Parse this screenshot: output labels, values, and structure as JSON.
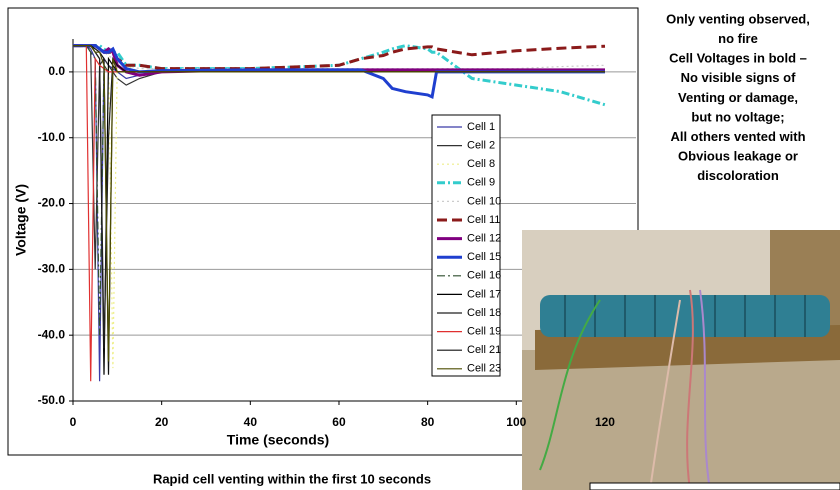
{
  "chart_data": {
    "type": "line",
    "x_label": "Time (seconds)",
    "y_label": "Voltage (V)",
    "caption": "Rapid cell venting within the first 10 seconds",
    "annotations": [
      "Only venting observed,",
      "no fire",
      "Cell Voltages in bold –",
      "No visible signs of",
      "Venting or damage,",
      "but no voltage;",
      "All others vented with",
      "Obvious leakage or",
      "discoloration"
    ],
    "xlim": [
      0,
      127
    ],
    "ylim": [
      -50,
      5
    ],
    "xticks": [
      0,
      20,
      40,
      60,
      80,
      100,
      120
    ],
    "yticks": [
      {
        "value": 0,
        "label": "0.0"
      },
      {
        "value": -10,
        "label": "-10.0"
      },
      {
        "value": -20,
        "label": "-20.0"
      },
      {
        "value": -30,
        "label": "-30.0"
      },
      {
        "value": -40,
        "label": "-40.0"
      },
      {
        "value": -50,
        "label": "-50.0"
      }
    ],
    "grid": true,
    "x": [
      0,
      3,
      4,
      5,
      6,
      7,
      8,
      9,
      10,
      12,
      15,
      20,
      40,
      60,
      65,
      70,
      72,
      75,
      80,
      81,
      82,
      90,
      100,
      110,
      120
    ],
    "series": [
      {
        "name": "Cell 1",
        "color": "#3b3ba8",
        "line_style": "solid",
        "bold": false,
        "values": [
          4,
          4,
          3.5,
          2,
          -47,
          2,
          1,
          0.5,
          0,
          -1,
          -0.5,
          0,
          0.3,
          0.3,
          0.3,
          0.3,
          0.3,
          0.3,
          0.3,
          0.3,
          0.3,
          0.3,
          0.3,
          0.3,
          0.2
        ]
      },
      {
        "name": "Cell 2",
        "color": "#333333",
        "line_style": "solid",
        "bold": false,
        "values": [
          4,
          4,
          3,
          -30,
          1,
          2,
          1,
          0,
          -1,
          -2,
          -1,
          0,
          0,
          0,
          0,
          0,
          0,
          0,
          0,
          0,
          0,
          0,
          0,
          0,
          0
        ]
      },
      {
        "name": "Cell 8",
        "color": "#eeee88",
        "line_style": "dotted",
        "bold": false,
        "values": [
          4,
          4,
          4,
          3.5,
          3,
          3.5,
          3,
          -45,
          2,
          1,
          0,
          0,
          0.2,
          0.2,
          0.2,
          0.2,
          0.2,
          0.2,
          0.2,
          0.2,
          0.2,
          0.2,
          0.2,
          0.2,
          0.2
        ]
      },
      {
        "name": "Cell 9",
        "color": "#33cccc",
        "line_style": "dashdot",
        "bold": true,
        "values": [
          4,
          4,
          4,
          4,
          4,
          3.5,
          3,
          3,
          3,
          1,
          1,
          0.5,
          0.5,
          1,
          2,
          3,
          3.5,
          4,
          3.5,
          3,
          3,
          -1,
          -2,
          -3,
          -5
        ]
      },
      {
        "name": "Cell 10",
        "color": "#cccccc",
        "line_style": "dotted",
        "bold": false,
        "values": [
          4,
          4,
          4,
          3.5,
          3,
          3,
          2.5,
          2,
          1.5,
          1,
          0.5,
          0.5,
          0.5,
          0.5,
          0.5,
          0.5,
          0.5,
          0.5,
          0.5,
          0.5,
          0.5,
          0.5,
          0.5,
          0.8,
          1
        ]
      },
      {
        "name": "Cell 11",
        "color": "#8b1a1a",
        "line_style": "dashed",
        "bold": true,
        "values": [
          4,
          4,
          4,
          4,
          3.5,
          3,
          3,
          3,
          2,
          1,
          1,
          0.5,
          0.5,
          1,
          2,
          2.5,
          3,
          3.5,
          3.8,
          3.8,
          3.5,
          2.6,
          3.2,
          3.6,
          3.9
        ]
      },
      {
        "name": "Cell 12",
        "color": "#800080",
        "line_style": "solid",
        "bold": true,
        "values": [
          4,
          4,
          4,
          4,
          3.5,
          3,
          3.5,
          3,
          1,
          0,
          -0.5,
          0,
          0.3,
          0.3,
          0.3,
          0.3,
          0.3,
          0.3,
          0.3,
          0.3,
          0.3,
          0.3,
          0.3,
          0.3,
          0.3
        ]
      },
      {
        "name": "Cell 15",
        "color": "#1f3fcf",
        "line_style": "solid",
        "bold": true,
        "values": [
          4,
          4,
          4,
          4,
          3.5,
          3,
          3,
          3.5,
          2,
          0.5,
          0,
          0.2,
          0.3,
          0.3,
          0.3,
          -1,
          -2.5,
          -3,
          -3.5,
          -3.8,
          0,
          0,
          0,
          0,
          0
        ]
      },
      {
        "name": "Cell 16",
        "color": "#2f4f2f",
        "line_style": "dashdot",
        "bold": false,
        "values": [
          4,
          4,
          3,
          2,
          -40,
          1,
          0,
          0,
          0,
          0,
          0,
          0,
          0,
          0,
          0,
          0,
          0,
          0,
          0,
          0,
          0,
          0,
          0,
          0,
          0
        ]
      },
      {
        "name": "Cell 17",
        "color": "#000000",
        "line_style": "solid",
        "bold": false,
        "values": [
          4,
          4,
          4,
          3,
          2,
          -46,
          2,
          1,
          0,
          0,
          0,
          0,
          0,
          0,
          0,
          0,
          0,
          0,
          0,
          0,
          0,
          0,
          0,
          0,
          0
        ]
      },
      {
        "name": "Cell 18",
        "color": "#222222",
        "line_style": "solid",
        "bold": false,
        "values": [
          4,
          4,
          4,
          3,
          2,
          -42,
          -10,
          2,
          0,
          0,
          0,
          0,
          0,
          0,
          0,
          0,
          0,
          0,
          0,
          0,
          0,
          0,
          0,
          0,
          0
        ]
      },
      {
        "name": "Cell 19",
        "color": "#e03030",
        "line_style": "solid",
        "bold": false,
        "values": [
          4,
          4,
          -47,
          2,
          1,
          0.5,
          0,
          0,
          0,
          0,
          0,
          0,
          0,
          0,
          0,
          0,
          0,
          0,
          0,
          0,
          0,
          0,
          0,
          0,
          0
        ]
      },
      {
        "name": "Cell 21",
        "color": "#111111",
        "line_style": "solid",
        "bold": false,
        "values": [
          4,
          4,
          4,
          3.5,
          3,
          2,
          -46,
          2,
          1,
          0,
          0,
          0,
          0,
          0,
          0,
          0,
          0,
          0,
          0,
          0,
          0,
          0,
          0,
          0,
          0
        ]
      },
      {
        "name": "Cell 23",
        "color": "#4d4d00",
        "line_style": "solid",
        "bold": false,
        "values": [
          4,
          4,
          4,
          3,
          3,
          1,
          -44,
          2,
          0,
          0,
          0,
          0,
          0,
          0,
          0,
          0,
          0,
          0,
          0,
          0,
          0,
          0,
          0,
          0,
          0
        ]
      }
    ]
  }
}
